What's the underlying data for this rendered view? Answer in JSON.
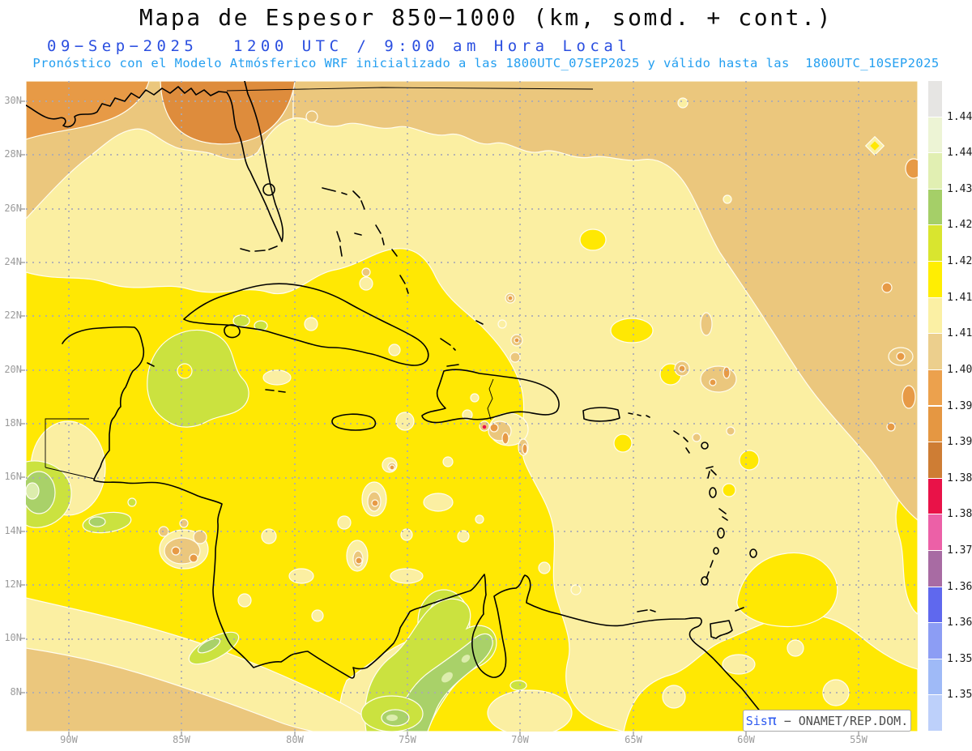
{
  "header": {
    "title": "Mapa de Espesor 850−1000 (km, somd. + cont.)",
    "date": "09−Sep−2025",
    "time": "1200 UTC / 9:00 am Hora Local",
    "forecast": "Pronóstico con el Modelo Atmósferico WRF inicializado a las 1800UTC_07SEP2025 y válido hasta las  1800UTC_10SEP2025"
  },
  "watermark": {
    "brand": "Sis",
    "pi": "π",
    "dash": " − ",
    "org": "ONAMET/REP.DOM."
  },
  "axes": {
    "lat_labels": [
      "30N",
      "28N",
      "26N",
      "24N",
      "22N",
      "20N",
      "18N",
      "16N",
      "14N",
      "12N",
      "10N",
      "8N"
    ],
    "lon_labels": [
      "90W",
      "85W",
      "80W",
      "75W",
      "70W",
      "65W",
      "60W",
      "55W"
    ]
  },
  "legend": {
    "labels": [
      "1.446",
      "1.44",
      "1.434",
      "1.428",
      "1.422",
      "1.416",
      "1.41",
      "1.404",
      "1.398",
      "1.392",
      "1.386",
      "1.38",
      "1.374",
      "1.368",
      "1.362",
      "1.356",
      "1.35"
    ],
    "band_colors_top_to_bottom": [
      "#E6E5E3",
      "#EDF4D5",
      "#E1EFB2",
      "#A5CF68",
      "#D9E52F",
      "#FFEE02",
      "#FBF0A4",
      "#ECCF8D",
      "#ECA14D",
      "#E59742",
      "#CE7D34",
      "#E91248",
      "#EC60A7",
      "#A86BA3",
      "#5F68EE",
      "#8C9DF4",
      "#9FBAF7",
      "#BDD0FA"
    ]
  },
  "palette": {
    "paleYellow": "#FBEFA2",
    "yellow": "#FFE803",
    "tan": "#EBC77D",
    "orange": "#E79A46",
    "darkOrange": "#DE8C3C",
    "deepOrange": "#CE7D34",
    "crimson": "#E91248",
    "chartreuse": "#CBE23F",
    "green": "#A9D169",
    "lightGreen": "#DCEDAD",
    "titleColor": "#0B0B0B",
    "dateBlue": "#2B4FE0",
    "forecastCyan": "#24A0F0",
    "axisGray": "#9B9B9B",
    "watermarkBlue": "#2F5BF0"
  },
  "chart_data": {
    "type": "heatmap",
    "title": "Mapa de Espesor 850−1000 (km, somd. + cont.)",
    "variable": "Espesor (thickness) 850−1000",
    "units": "km",
    "model_run": "WRF inicializado 1800UTC_07SEP2025, válido hasta 1800UTC_10SEP2025",
    "valid_time": "09−Sep−2025 1200 UTC / 9:00 am Hora Local",
    "levels": [
      1.35,
      1.356,
      1.362,
      1.368,
      1.374,
      1.38,
      1.386,
      1.392,
      1.398,
      1.404,
      1.41,
      1.416,
      1.422,
      1.428,
      1.434,
      1.44,
      1.446
    ],
    "colors_low_to_high": [
      "#BDD0FA",
      "#9FBAF7",
      "#8C9DF4",
      "#5F68EE",
      "#A86BA3",
      "#EC60A7",
      "#E91248",
      "#CE7D34",
      "#E59742",
      "#ECA14D",
      "#ECCF8D",
      "#FBF0A4",
      "#FFEE02",
      "#D9E52F",
      "#A5CF68",
      "#E1EFB2",
      "#EDF4D5",
      "#E6E5E3"
    ],
    "extent": {
      "lat": [
        "8N",
        "30N"
      ],
      "lon": [
        "90W",
        "55W"
      ]
    },
    "grid_interval": {
      "lat_deg": 2,
      "lon_deg": 5
    },
    "legend_position": "right",
    "field_summary": [
      {
        "region": "Western/central Caribbean, Gulf of Mexico south of 26N, Cuba, Jamaica",
        "value_range": "1.416–1.422 (bright yellow)"
      },
      {
        "region": "Eastern Caribbean, Hispaniola, Puerto Rico, Bahamas east",
        "value_range": "1.41–1.416 (pale yellow)"
      },
      {
        "region": "Northeast Atlantic corner and band north of 28N",
        "value_range": "1.404–1.41 (tan)"
      },
      {
        "region": "US Gulf states at top edge (Alabama/Georgia blob)",
        "value_range": "1.392–1.404 (orange)"
      },
      {
        "region": "Yucatán Channel, NW Guatemala, Costa Rica, Venezuela/Colombia interior",
        "value_range": "1.422–1.434 (green patches)"
      },
      {
        "region": "Small convective speckles near Hispaniola, Nicaragua, 17–19N 62W",
        "value_range": "1.386–1.404 (orange cores, one 1.38–1.386 crimson dot)"
      },
      {
        "region": "SW Pacific corner and SE coastal strip",
        "value_range": "1.404–1.41 (tan)"
      }
    ]
  }
}
